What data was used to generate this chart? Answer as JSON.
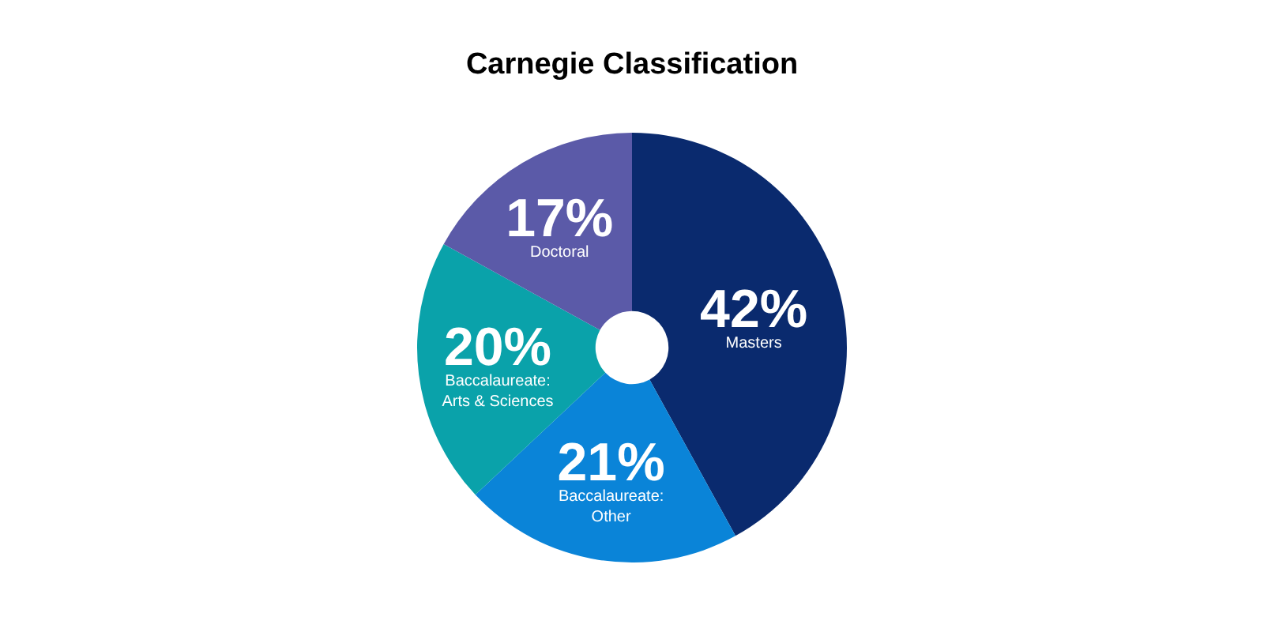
{
  "chart_data": {
    "type": "donut",
    "title": "Carnegie Classification",
    "categories": [
      "Masters",
      "Baccalaureate: Other",
      "Baccalaureate: Arts & Sciences",
      "Doctoral"
    ],
    "values": [
      42,
      21,
      20,
      17
    ],
    "value_labels": [
      "42%",
      "21%",
      "20%",
      "17%"
    ],
    "colors": [
      "#0a2a6e",
      "#0a84d8",
      "#0aa2aa",
      "#5b5aa8"
    ],
    "legend": false
  }
}
